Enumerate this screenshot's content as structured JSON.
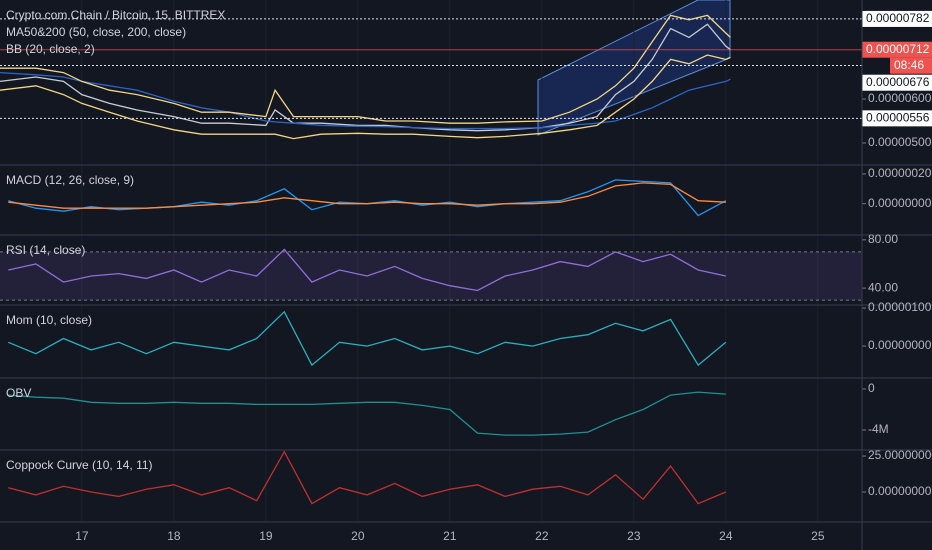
{
  "chart_data": [
    {
      "type": "line",
      "title": "Crypto.com Chain / Bitcoin, 15, BITTREX",
      "labels": [
        "MA50&200 (50, close, 200, close)",
        "BB (20, close, 2)"
      ],
      "xlim": [
        16.11,
        25.48
      ],
      "xticks": [
        17,
        18,
        19,
        20,
        21,
        22,
        23,
        24,
        25
      ],
      "ylim": [
        4.5e-06,
        8.25e-06
      ],
      "yticks": [
        {
          "value": 5e-06,
          "label": "0.00000500"
        },
        {
          "value": 6e-06,
          "label": "0.00000600"
        }
      ],
      "x": [
        16.11,
        16.5,
        16.8,
        17.0,
        17.3,
        17.6,
        18.0,
        18.3,
        18.6,
        19.0,
        19.1,
        19.3,
        19.6,
        20.0,
        20.3,
        20.6,
        21.0,
        21.3,
        21.6,
        22.0,
        22.3,
        22.6,
        22.8,
        23.0,
        23.2,
        23.4,
        23.6,
        23.8,
        24.0,
        24.05
      ],
      "series": [
        {
          "color": "#c9ccd4",
          "values": [
            6.4e-06,
            6.5e-06,
            6.4e-06,
            6.1e-06,
            5.9e-06,
            5.75e-06,
            5.6e-06,
            5.45e-06,
            5.45e-06,
            5.4e-06,
            5.75e-06,
            5.45e-06,
            5.45e-06,
            5.4e-06,
            5.4e-06,
            5.35e-06,
            5.3e-06,
            5.28e-06,
            5.3e-06,
            5.35e-06,
            5.45e-06,
            5.6e-06,
            6.1e-06,
            6.4e-06,
            6.9e-06,
            7.6e-06,
            7.4e-06,
            7.7e-06,
            7.2e-06,
            7.12e-06
          ]
        },
        {
          "color": "#2a64c8",
          "values": [
            6.6e-06,
            6.55e-06,
            6.5e-06,
            6.4e-06,
            6.3e-06,
            6.2e-06,
            5.95e-06,
            5.8e-06,
            5.7e-06,
            5.5e-06,
            5.48e-06,
            5.45e-06,
            5.4e-06,
            5.38e-06,
            5.37e-06,
            5.35e-06,
            5.33e-06,
            5.33e-06,
            5.33e-06,
            5.35e-06,
            5.4e-06,
            5.45e-06,
            5.5e-06,
            5.65e-06,
            5.8e-06,
            6e-06,
            6.2e-06,
            6.3e-06,
            6.4e-06,
            6.45e-06
          ]
        },
        {
          "color": "#f3d584",
          "values": [
            6.7e-06,
            6.7e-06,
            6.6e-06,
            6.4e-06,
            6.2e-06,
            6.1e-06,
            5.9e-06,
            5.7e-06,
            5.7e-06,
            5.6e-06,
            6.2e-06,
            5.6e-06,
            5.6e-06,
            5.6e-06,
            5.5e-06,
            5.5e-06,
            5.45e-06,
            5.45e-06,
            5.48e-06,
            5.5e-06,
            5.7e-06,
            6e-06,
            6.3e-06,
            6.7e-06,
            7.3e-06,
            7.9e-06,
            7.8e-06,
            7.9e-06,
            7.5e-06,
            7.4e-06
          ]
        },
        {
          "color": "#f3d584",
          "values": [
            6.2e-06,
            6.3e-06,
            6.1e-06,
            5.9e-06,
            5.7e-06,
            5.5e-06,
            5.3e-06,
            5.2e-06,
            5.2e-06,
            5.2e-06,
            5.2e-06,
            5.1e-06,
            5.2e-06,
            5.22e-06,
            5.2e-06,
            5.2e-06,
            5.15e-06,
            5.12e-06,
            5.15e-06,
            5.22e-06,
            5.3e-06,
            5.4e-06,
            5.7e-06,
            6e-06,
            6.4e-06,
            6.9e-06,
            6.8e-06,
            7e-06,
            6.9e-06,
            6.95e-06
          ]
        }
      ],
      "price_lines": [
        {
          "value": 7.82e-06,
          "label": "0.00000782"
        },
        {
          "value": 6.76e-06,
          "label": "0.00000676"
        },
        {
          "value": 5.56e-06,
          "label": "0.00000556"
        }
      ],
      "last_price": {
        "value": 7.12e-06,
        "label": "0.00000712",
        "color": "#ef5350"
      },
      "countdown": "08:46"
    },
    {
      "type": "line",
      "title": "MACD (12, 26, close, 9)",
      "xlim": [
        16.11,
        25.48
      ],
      "ylim": [
        -2.1e-07,
        2.6e-07
      ],
      "yticks": [
        {
          "value": 2e-07,
          "label": "0.00000020"
        },
        {
          "value": 0,
          "label": "0.00000000"
        }
      ],
      "x": [
        16.2,
        16.5,
        16.8,
        17.1,
        17.4,
        17.7,
        18.0,
        18.3,
        18.6,
        18.9,
        19.2,
        19.5,
        19.8,
        20.1,
        20.4,
        20.7,
        21.0,
        21.3,
        21.6,
        21.9,
        22.2,
        22.5,
        22.8,
        23.1,
        23.4,
        23.7,
        24.0
      ],
      "series": [
        {
          "color": "#2196f3",
          "values": [
            2e-08,
            -3e-08,
            -5e-08,
            -2e-08,
            -4e-08,
            -3e-08,
            -2e-08,
            1e-08,
            -1e-08,
            2e-08,
            1e-07,
            -4e-08,
            1e-08,
            0,
            2e-08,
            -1e-08,
            1e-08,
            -2e-08,
            0,
            1e-08,
            2e-08,
            8e-08,
            1.6e-07,
            1.5e-07,
            1.4e-07,
            -8e-08,
            2e-08
          ]
        },
        {
          "color": "#ff8a3d",
          "values": [
            1e-08,
            -1e-08,
            -3e-08,
            -3e-08,
            -3e-08,
            -3e-08,
            -2e-08,
            -1e-08,
            0,
            1e-08,
            4e-08,
            2e-08,
            0,
            0,
            1e-08,
            0,
            0,
            -1e-08,
            0,
            0,
            1e-08,
            5e-08,
            1.2e-07,
            1.4e-07,
            1.3e-07,
            2e-08,
            1e-08
          ]
        }
      ]
    },
    {
      "type": "line",
      "title": "RSI (14, close)",
      "xlim": [
        16.11,
        25.48
      ],
      "ylim": [
        26,
        84
      ],
      "band": [
        30,
        70
      ],
      "yticks": [
        {
          "value": 80,
          "label": "80.00"
        },
        {
          "value": 40,
          "label": "40.00"
        }
      ],
      "x": [
        16.2,
        16.5,
        16.8,
        17.1,
        17.4,
        17.7,
        18.0,
        18.3,
        18.6,
        18.9,
        19.2,
        19.5,
        19.8,
        20.1,
        20.4,
        20.7,
        21.0,
        21.3,
        21.6,
        21.9,
        22.2,
        22.5,
        22.8,
        23.1,
        23.4,
        23.7,
        24.0
      ],
      "series": [
        {
          "color": "#8f6fd6",
          "values": [
            55,
            60,
            45,
            50,
            52,
            48,
            55,
            45,
            55,
            50,
            72,
            45,
            55,
            50,
            58,
            48,
            42,
            38,
            50,
            55,
            62,
            58,
            70,
            62,
            68,
            55,
            50
          ]
        }
      ]
    },
    {
      "type": "line",
      "title": "Mom (10, close)",
      "xlim": [
        16.11,
        25.48
      ],
      "ylim": [
        -8.4e-07,
        1.08e-06
      ],
      "yticks": [
        {
          "value": 1e-06,
          "label": "0.00000100"
        },
        {
          "value": 0,
          "label": "0.00000000"
        }
      ],
      "x": [
        16.2,
        16.5,
        16.8,
        17.1,
        17.4,
        17.7,
        18.0,
        18.3,
        18.6,
        18.9,
        19.2,
        19.5,
        19.8,
        20.1,
        20.4,
        20.7,
        21.0,
        21.3,
        21.6,
        21.9,
        22.2,
        22.5,
        22.8,
        23.1,
        23.4,
        23.7,
        24.0
      ],
      "series": [
        {
          "color": "#2ab0bd",
          "values": [
            1e-07,
            -2e-07,
            2e-07,
            -1e-07,
            1e-07,
            -2e-07,
            1e-07,
            0,
            -1e-07,
            2e-07,
            9e-07,
            -5e-07,
            1e-07,
            0,
            2e-07,
            -1e-07,
            0,
            -2e-07,
            1e-07,
            0,
            2e-07,
            3e-07,
            6e-07,
            4e-07,
            7e-07,
            -5e-07,
            1e-07
          ]
        }
      ]
    },
    {
      "type": "line",
      "title": "OBV",
      "xlim": [
        16.11,
        25.48
      ],
      "ylim": [
        -5950000,
        1070000
      ],
      "yticks": [
        0,
        {
          "value": -4000000,
          "label": "-4M"
        }
      ],
      "x": [
        16.2,
        16.5,
        16.8,
        17.1,
        17.4,
        17.7,
        18.0,
        18.3,
        18.6,
        18.9,
        19.2,
        19.5,
        19.8,
        20.1,
        20.4,
        20.7,
        21.0,
        21.3,
        21.6,
        21.9,
        22.2,
        22.5,
        22.8,
        23.1,
        23.4,
        23.7,
        24.0
      ],
      "series": [
        {
          "color": "#1f9090",
          "values": [
            -600000,
            -800000,
            -900000,
            -1300000,
            -1400000,
            -1400000,
            -1300000,
            -1400000,
            -1400000,
            -1500000,
            -1500000,
            -1500000,
            -1400000,
            -1300000,
            -1300000,
            -1600000,
            -2000000,
            -4300000,
            -4500000,
            -4500000,
            -4400000,
            -4200000,
            -3000000,
            -2000000,
            -600000,
            -300000,
            -500000
          ]
        }
      ]
    },
    {
      "type": "line",
      "title": "Coppock Curve (10, 14, 11)",
      "xlim": [
        16.11,
        25.48
      ],
      "ylim": [
        -20.8,
        29.2
      ],
      "yticks": [
        {
          "value": 25,
          "label": "25.00000000"
        },
        {
          "value": 0,
          "label": "0.00000000"
        }
      ],
      "x": [
        16.2,
        16.5,
        16.8,
        17.1,
        17.4,
        17.7,
        18.0,
        18.3,
        18.6,
        18.9,
        19.2,
        19.5,
        19.8,
        20.1,
        20.4,
        20.7,
        21.0,
        21.3,
        21.6,
        21.9,
        22.2,
        22.5,
        22.8,
        23.1,
        23.4,
        23.7,
        24.0
      ],
      "series": [
        {
          "color": "#c0302c",
          "values": [
            3,
            -2,
            4,
            0,
            -3,
            2,
            5,
            -2,
            3,
            -6,
            28,
            -8,
            3,
            -2,
            6,
            -3,
            2,
            5,
            -3,
            2,
            4,
            -2,
            12,
            -5,
            18,
            -8,
            0
          ]
        }
      ]
    }
  ]
}
